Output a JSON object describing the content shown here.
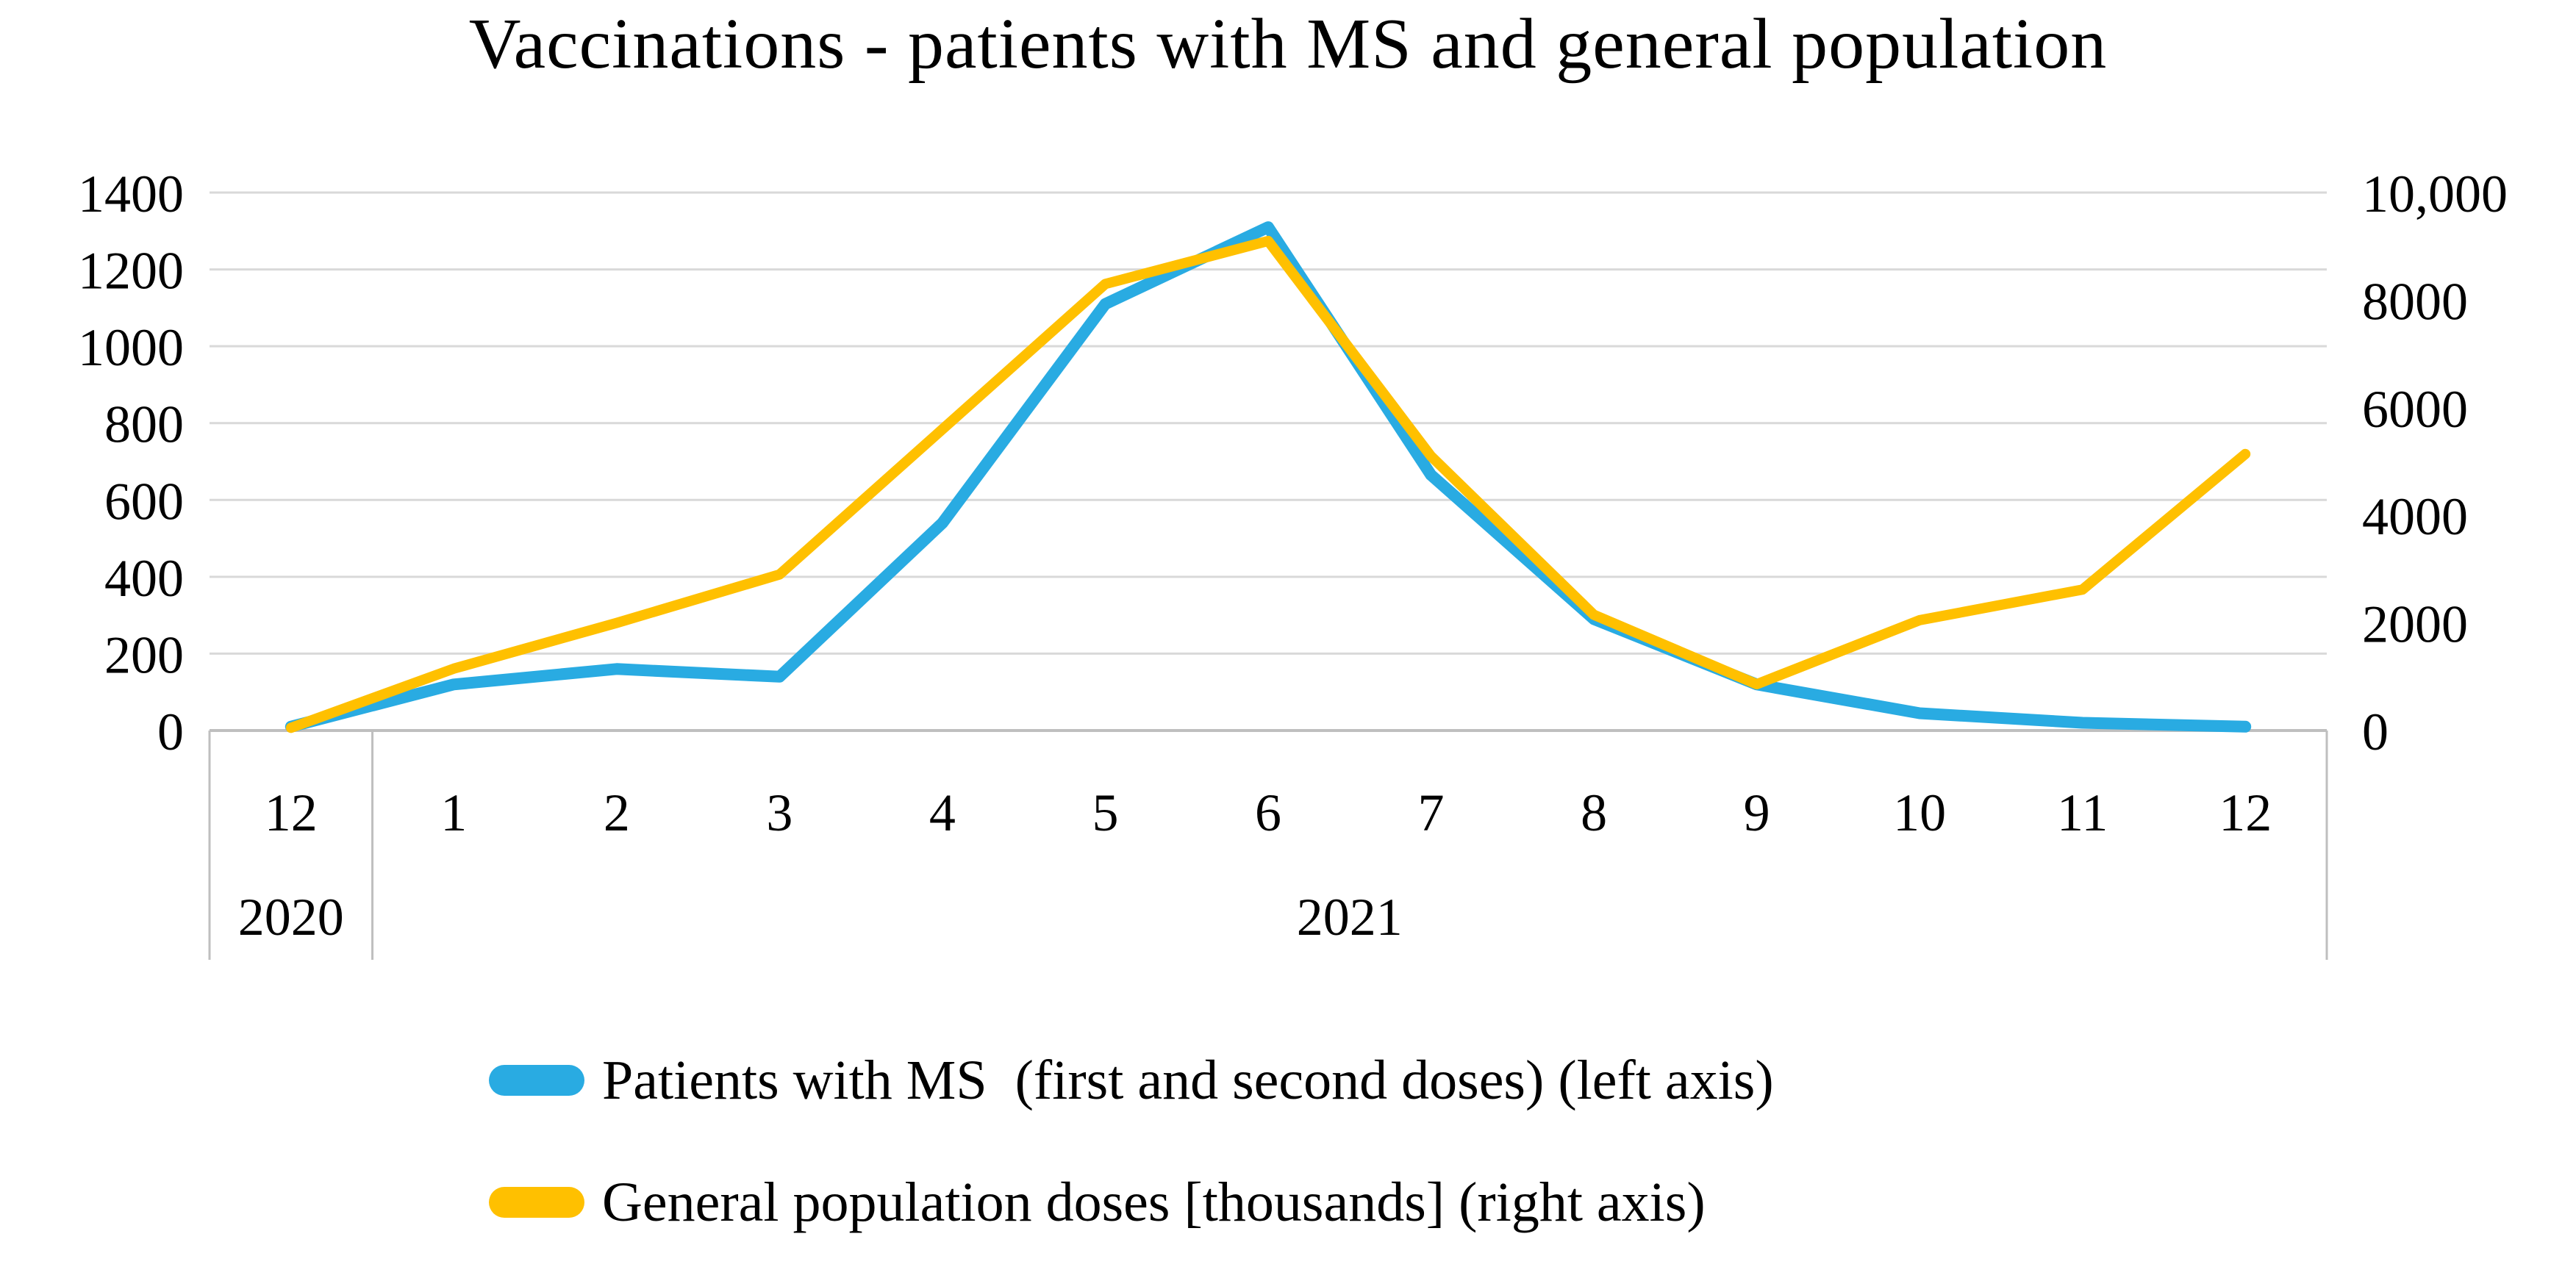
{
  "chart_data": {
    "type": "line",
    "title": "Vaccinations - patients with MS and general population",
    "categories": [
      "12",
      "1",
      "2",
      "3",
      "4",
      "5",
      "6",
      "7",
      "8",
      "9",
      "10",
      "11",
      "12"
    ],
    "year_groups": [
      {
        "label": "2020",
        "from": 0,
        "to": 0
      },
      {
        "label": "2021",
        "from": 1,
        "to": 12
      }
    ],
    "series": [
      {
        "name": "Patients with MS  (first and second doses) (left axis)",
        "axis": "left",
        "color": "#29ABE2",
        "values": [
          10,
          120,
          160,
          140,
          540,
          1110,
          1310,
          665,
          290,
          120,
          45,
          20,
          10
        ]
      },
      {
        "name": "General population doses [thousands] (right axis)",
        "axis": "right",
        "color": "#FFC000",
        "values": [
          50,
          1150,
          2000,
          2900,
          5600,
          8300,
          9100,
          5100,
          2150,
          860,
          2050,
          2620,
          5140
        ]
      }
    ],
    "left_axis": {
      "min": 0,
      "max": 1400,
      "labels_bottom_up": [
        "0",
        "200",
        "400",
        "600",
        "800",
        "1000",
        "1200",
        "1400"
      ]
    },
    "right_axis": {
      "min": 0,
      "max": 10000,
      "labels_bottom_up": [
        "0",
        "2000",
        "4000",
        "6000",
        "8000",
        "10,000"
      ]
    },
    "grid": true,
    "gridline_color": "#D9D9D9",
    "axis_line_color": "#BFBFBF",
    "legend_position": "bottom-left"
  }
}
